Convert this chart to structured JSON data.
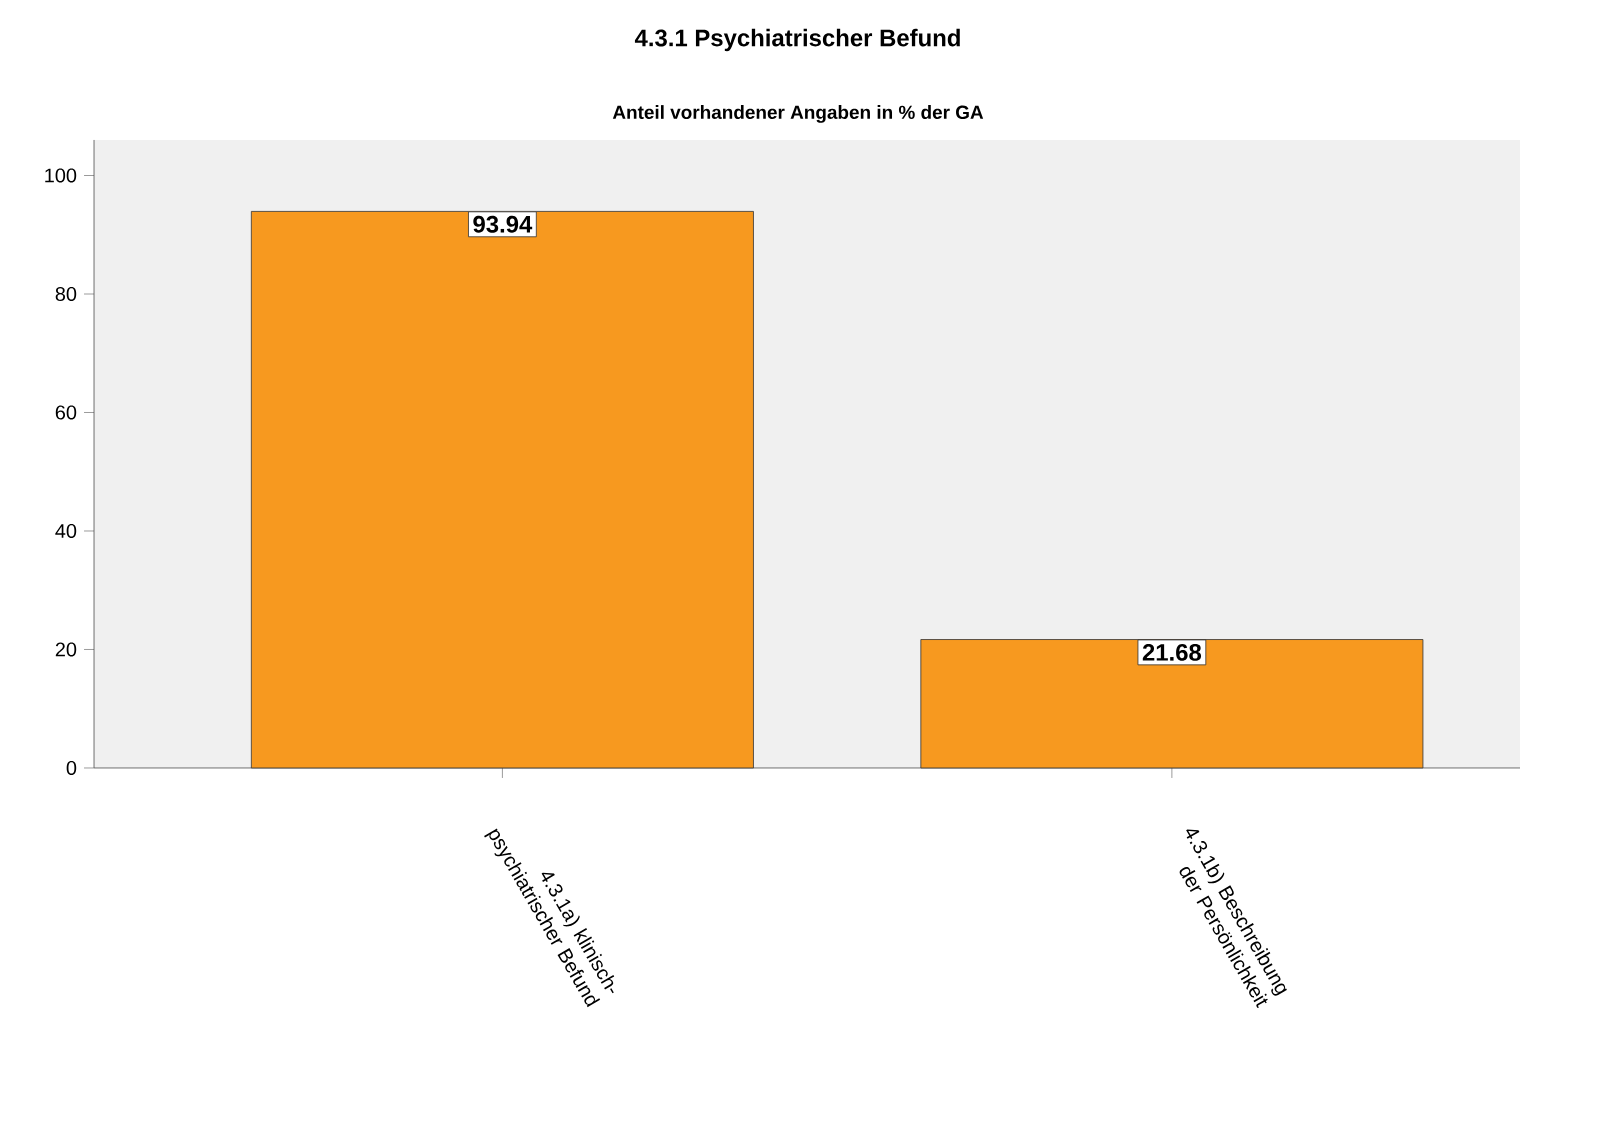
{
  "chart_data": {
    "type": "bar",
    "title": "4.3.1 Psychiatrischer Befund",
    "subtitle": "Anteil vorhandener Angaben in % der GA",
    "categories": [
      "4.3.1a) klinisch-psychiatrischer Befund",
      "4.3.1b) Beschreibung der Persönlichkeit"
    ],
    "values": [
      93.94,
      21.68
    ],
    "color": "#f7991f",
    "ylim": [
      0,
      106
    ],
    "yticks": [
      0,
      20,
      40,
      60,
      80,
      100
    ],
    "data_labels": true
  }
}
